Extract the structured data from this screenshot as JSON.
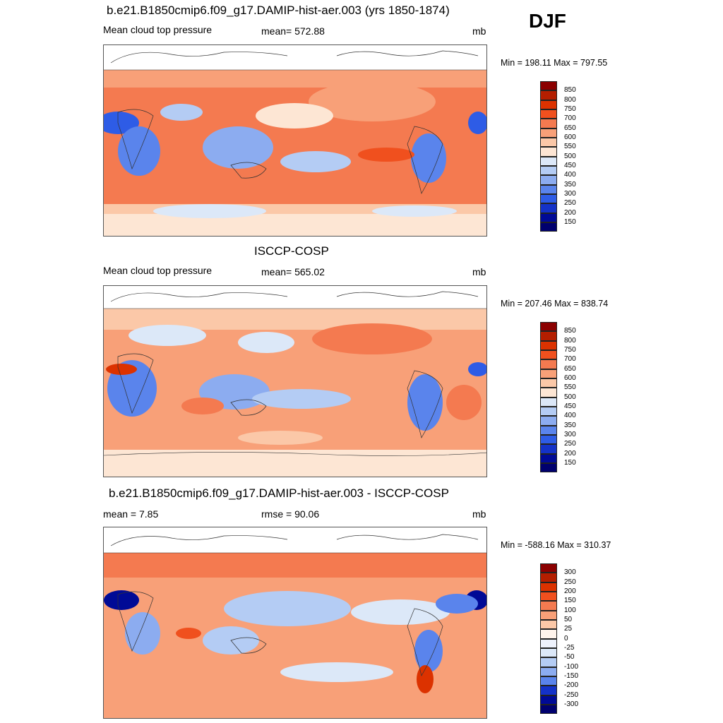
{
  "season": "DJF",
  "panels": [
    {
      "title": "b.e21.B1850cmip6.f09_g17.DAMIP-hist-aer.003 (yrs 1850-1874)",
      "left_label": "Mean cloud top pressure",
      "center_label": "mean= 572.88",
      "unit": "mb",
      "minmax": "Min = 198.11 Max = 797.55",
      "colorbar": {
        "labels": [
          "850",
          "800",
          "750",
          "700",
          "650",
          "600",
          "550",
          "500",
          "450",
          "400",
          "350",
          "300",
          "250",
          "200",
          "150"
        ],
        "colors": [
          "#8b0000",
          "#b41e00",
          "#dc3200",
          "#f0501e",
          "#f47a50",
          "#f8a078",
          "#fbc8a8",
          "#fde6d4",
          "#dce8f8",
          "#b4ccf4",
          "#8cacf0",
          "#5a84ec",
          "#2e5ce6",
          "#1432c8",
          "#000a96",
          "#00006e"
        ]
      }
    },
    {
      "title": "ISCCP-COSP",
      "left_label": "Mean cloud top pressure",
      "center_label": "mean= 565.02",
      "unit": "mb",
      "minmax": "Min = 207.46 Max = 838.74",
      "colorbar": {
        "labels": [
          "850",
          "800",
          "750",
          "700",
          "650",
          "600",
          "550",
          "500",
          "450",
          "400",
          "350",
          "300",
          "250",
          "200",
          "150"
        ],
        "colors": [
          "#8b0000",
          "#b41e00",
          "#dc3200",
          "#f0501e",
          "#f47a50",
          "#f8a078",
          "#fbc8a8",
          "#fde6d4",
          "#dce8f8",
          "#b4ccf4",
          "#8cacf0",
          "#5a84ec",
          "#2e5ce6",
          "#1432c8",
          "#000a96",
          "#00006e"
        ]
      }
    },
    {
      "title": "b.e21.B1850cmip6.f09_g17.DAMIP-hist-aer.003 - ISCCP-COSP",
      "left_label": "mean =   7.85",
      "center_label": "rmse =  90.06",
      "unit": "mb",
      "minmax": "Min = -588.16 Max = 310.37",
      "colorbar": {
        "labels": [
          "300",
          "250",
          "200",
          "150",
          "100",
          "50",
          "25",
          "0",
          "-25",
          "-50",
          "-100",
          "-150",
          "-200",
          "-250",
          "-300"
        ],
        "colors": [
          "#8b0000",
          "#b41e00",
          "#dc3200",
          "#f0501e",
          "#f47a50",
          "#f8a078",
          "#fbc8a8",
          "#fff4ec",
          "#eef2fc",
          "#dce8f8",
          "#b4ccf4",
          "#8cacf0",
          "#5a84ec",
          "#1432c8",
          "#000a96",
          "#00006e"
        ]
      }
    }
  ]
}
